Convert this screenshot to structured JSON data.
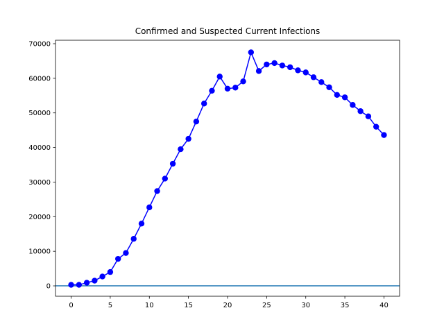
{
  "chart_data": {
    "type": "line",
    "title": "Confirmed and Suspected Current Infections",
    "xlabel": "",
    "ylabel": "",
    "xlim": [
      -2,
      42
    ],
    "ylim": [
      -3000,
      71000
    ],
    "xticks": [
      0,
      5,
      10,
      15,
      20,
      25,
      30,
      35,
      40
    ],
    "yticks": [
      0,
      10000,
      20000,
      30000,
      40000,
      50000,
      60000,
      70000
    ],
    "grid": false,
    "colors": {
      "series": "#0000ff",
      "baseline": "#1f77b4"
    },
    "baseline_y": 0,
    "series": [
      {
        "x": [
          0,
          1,
          2,
          3,
          4,
          5,
          6,
          7,
          8,
          9,
          10,
          11,
          12,
          13,
          14,
          15,
          16,
          17,
          18,
          19,
          20,
          21,
          22,
          23,
          24,
          25,
          26,
          27,
          28,
          29,
          30,
          31,
          32,
          33,
          34,
          35,
          36,
          37,
          38,
          39,
          40
        ],
        "values": [
          300,
          300,
          900,
          1500,
          2700,
          4000,
          7800,
          9500,
          13600,
          18000,
          22700,
          27400,
          31000,
          35300,
          39500,
          42500,
          47500,
          52700,
          56400,
          60500,
          57000,
          57300,
          59100,
          67500,
          62100,
          64000,
          64400,
          63700,
          63200,
          62300,
          61700,
          60300,
          58900,
          57400,
          55200,
          54500,
          52300,
          50500,
          49000,
          46000,
          43600
        ]
      }
    ]
  }
}
